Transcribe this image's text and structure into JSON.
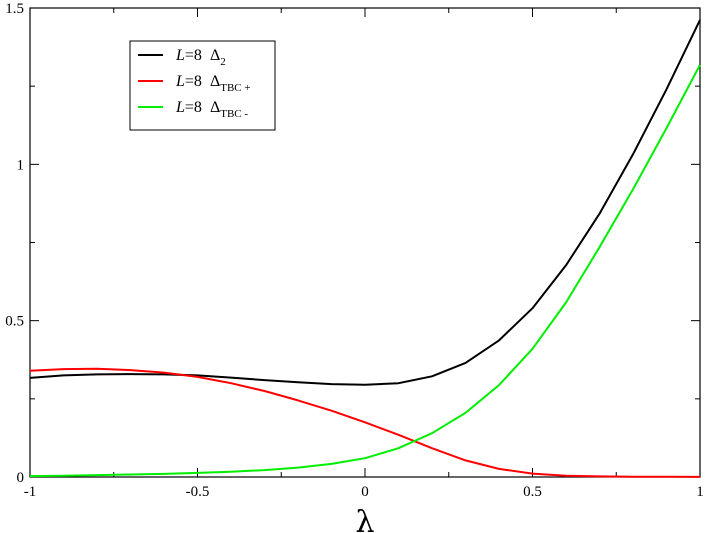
{
  "chart_data": {
    "type": "line",
    "xlabel": "λ",
    "ylabel": "",
    "xlim": [
      -1,
      1
    ],
    "ylim": [
      0,
      1.5
    ],
    "x_ticks": [
      -1,
      -0.5,
      0,
      0.5,
      1
    ],
    "x_tick_labels": [
      "-1",
      "-0.5",
      "0",
      "0.5",
      "1"
    ],
    "y_ticks": [
      0,
      0.5,
      1,
      1.5
    ],
    "y_tick_labels": [
      "0",
      "0.5",
      "1",
      "1.5"
    ],
    "legend_position": "top-left",
    "x": [
      -1.0,
      -0.9,
      -0.8,
      -0.7,
      -0.6,
      -0.5,
      -0.4,
      -0.3,
      -0.2,
      -0.1,
      0.0,
      0.1,
      0.2,
      0.3,
      0.4,
      0.5,
      0.6,
      0.7,
      0.8,
      0.9,
      1.0
    ],
    "series": [
      {
        "legend_main": "L=8",
        "legend_symbol": "Δ",
        "legend_sub": "2",
        "color": "#000000",
        "values": [
          0.317,
          0.325,
          0.328,
          0.329,
          0.328,
          0.325,
          0.318,
          0.31,
          0.303,
          0.297,
          0.295,
          0.3,
          0.322,
          0.365,
          0.437,
          0.54,
          0.677,
          0.842,
          1.032,
          1.24,
          1.462
        ]
      },
      {
        "legend_main": "L=8",
        "legend_symbol": "Δ",
        "legend_sub": "TBC +",
        "color": "#ff0000",
        "values": [
          0.34,
          0.345,
          0.346,
          0.342,
          0.334,
          0.32,
          0.3,
          0.275,
          0.245,
          0.212,
          0.175,
          0.135,
          0.092,
          0.053,
          0.026,
          0.011,
          0.004,
          0.002,
          0.001,
          0.0005,
          0.0002
        ]
      },
      {
        "legend_main": "L=8",
        "legend_symbol": "Δ",
        "legend_sub": "TBC -",
        "color": "#00ee00",
        "values": [
          0.003,
          0.004,
          0.006,
          0.008,
          0.01,
          0.013,
          0.017,
          0.022,
          0.03,
          0.042,
          0.06,
          0.092,
          0.14,
          0.205,
          0.294,
          0.41,
          0.558,
          0.735,
          0.92,
          1.116,
          1.318
        ]
      }
    ]
  }
}
